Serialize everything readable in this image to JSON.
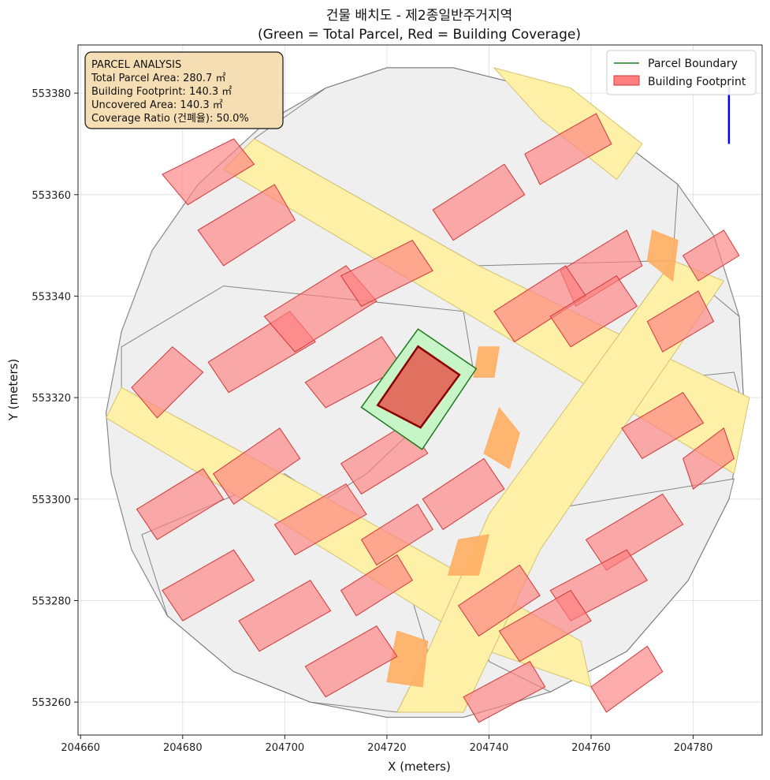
{
  "chart_data": {
    "type": "map",
    "title": "건물 배치도 - 제2종일반주거지역",
    "subtitle": "(Green = Total Parcel, Red = Building Coverage)",
    "xlabel": "X (meters)",
    "ylabel": "Y (meters)",
    "xlim": [
      204659.5,
      204793.5
    ],
    "ylim": [
      553253.5,
      553389.5
    ],
    "x_ticks": [
      204660,
      204680,
      204700,
      204720,
      204740,
      204760,
      204780
    ],
    "y_ticks": [
      553260,
      553280,
      553300,
      553320,
      553340,
      553360,
      553380
    ],
    "grid": true,
    "legend_placement": "top-right",
    "legend": [
      {
        "label": "Parcel Boundary",
        "color": "#1f7a1f",
        "kind": "line"
      },
      {
        "label": "Building Footprint",
        "color": "#ff7f7f",
        "kind": "patch"
      }
    ],
    "info_box": {
      "lines": [
        "PARCEL ANALYSIS",
        "Total Parcel Area: 280.7 ㎡",
        "Building Footprint: 140.3 ㎡",
        "Uncovered Area: 140.3 ㎡",
        "Coverage Ratio (건폐율): 50.0%"
      ]
    },
    "subject_parcel": {
      "total_area_m2": 280.7,
      "footprint_m2": 140.3,
      "uncovered_m2": 140.3,
      "coverage_ratio_pct": 50.0,
      "parcel_polygon": [
        [
          204726.1,
          553333.5
        ],
        [
          204737.5,
          553325.7
        ],
        [
          204726.9,
          553309.8
        ],
        [
          204715.0,
          553318.1
        ]
      ],
      "building_polygon": [
        [
          204726.1,
          553330.1
        ],
        [
          204734.2,
          553324.5
        ],
        [
          204726.6,
          553314.1
        ],
        [
          204718.2,
          553318.5
        ]
      ]
    },
    "north_arrow": {
      "x": 204787,
      "y_start": 553370,
      "y_end": 553382
    },
    "colors": {
      "parcel_fill": "#c8f5c8",
      "parcel_edge": "#1f7a1f",
      "building_fill": "#ff7f7f",
      "building_edge": "#d03838",
      "subject_fill": "#e07060",
      "subject_edge": "#8b0000",
      "road": "#fff0a8",
      "road_edge": "#d4c270",
      "block_fill": "#efefef",
      "block_edge": "#555555",
      "orange": "#ffae62",
      "info_bg": "#f5deb3",
      "north_arrow": "#0000ff"
    },
    "study_area": [
      [
        204665,
        553317
      ],
      [
        204668,
        553333
      ],
      [
        204674,
        553349
      ],
      [
        204683,
        553362
      ],
      [
        204696,
        553374
      ],
      [
        204708,
        553381
      ],
      [
        204720,
        553385
      ],
      [
        204733,
        553385
      ],
      [
        204749,
        553381
      ],
      [
        204764,
        553372
      ],
      [
        204777,
        553362
      ],
      [
        204784,
        553352
      ],
      [
        204789,
        553336
      ],
      [
        204790,
        553317
      ],
      [
        204787,
        553300
      ],
      [
        204779,
        553284
      ],
      [
        204767,
        553270
      ],
      [
        204752,
        553262
      ],
      [
        204735,
        553257
      ],
      [
        204720,
        553257
      ],
      [
        204705,
        553260
      ],
      [
        204690,
        553266
      ],
      [
        204677,
        553277
      ],
      [
        204670,
        553290
      ],
      [
        204666,
        553305
      ]
    ],
    "roads": [
      [
        [
          204688,
          553365
        ],
        [
          204735,
          553337
        ],
        [
          204788,
          553305
        ],
        [
          204791,
          553320
        ],
        [
          204738,
          553346
        ],
        [
          204694,
          553371
        ]
      ],
      [
        [
          204665,
          553316
        ],
        [
          204700,
          553295
        ],
        [
          204740,
          553270
        ],
        [
          204760,
          553263
        ],
        [
          204758,
          553272
        ],
        [
          204705,
          553302
        ],
        [
          204668,
          553322
        ]
      ],
      [
        [
          204722,
          553258
        ],
        [
          204735,
          553258
        ],
        [
          204750,
          553290
        ],
        [
          204786,
          553343
        ],
        [
          204776,
          553347
        ],
        [
          204740,
          553297
        ],
        [
          204728,
          553270
        ]
      ],
      [
        [
          204741,
          553385
        ],
        [
          204756,
          553381
        ],
        [
          204770,
          553370
        ],
        [
          204765,
          553363
        ],
        [
          204750,
          553375
        ]
      ]
    ],
    "blocks": [
      [
        [
          204668,
          553330
        ],
        [
          204688,
          553342
        ],
        [
          204735,
          553337
        ],
        [
          204737,
          553325
        ],
        [
          204716,
          553305
        ],
        [
          204700,
          553295
        ],
        [
          204668,
          553318
        ]
      ],
      [
        [
          204672,
          553293
        ],
        [
          204700,
          553305
        ],
        [
          204722,
          553290
        ],
        [
          204728,
          553270
        ],
        [
          204722,
          553258
        ],
        [
          204705,
          553260
        ],
        [
          204690,
          553266
        ],
        [
          204677,
          553277
        ]
      ],
      [
        [
          204740,
          553296
        ],
        [
          204788,
          553304
        ],
        [
          204787,
          553300
        ],
        [
          204779,
          553284
        ],
        [
          204767,
          553270
        ],
        [
          204752,
          553262
        ],
        [
          204740,
          553268
        ],
        [
          204738,
          553282
        ]
      ],
      [
        [
          204788,
          553325
        ],
        [
          204790,
          553317
        ],
        [
          204789,
          553336
        ],
        [
          204776,
          553347
        ],
        [
          204758,
          553322
        ]
      ],
      [
        [
          204694,
          553371
        ],
        [
          204738,
          553346
        ],
        [
          204776,
          553347
        ],
        [
          204777,
          553362
        ],
        [
          204764,
          553372
        ],
        [
          204749,
          553381
        ],
        [
          204733,
          553385
        ],
        [
          204720,
          553385
        ],
        [
          204708,
          553381
        ]
      ]
    ],
    "orange_polygons": [
      [
        [
          204720,
          553264
        ],
        [
          204727,
          553263
        ],
        [
          204728,
          553272
        ],
        [
          204722,
          553274
        ]
      ],
      [
        [
          204772,
          553353
        ],
        [
          204777,
          553351
        ],
        [
          204776,
          553343
        ],
        [
          204771,
          553347
        ]
      ],
      [
        [
          204742,
          553318
        ],
        [
          204746,
          553313
        ],
        [
          204744,
          553306
        ],
        [
          204739,
          553309
        ]
      ],
      [
        [
          204738,
          553330
        ],
        [
          204742,
          553330
        ],
        [
          204741,
          553324
        ],
        [
          204737,
          553324
        ]
      ],
      [
        [
          204734,
          553292
        ],
        [
          204740,
          553293
        ],
        [
          204738,
          553285
        ],
        [
          204732,
          553285
        ]
      ]
    ],
    "buildings": [
      [
        [
          204676,
          553364
        ],
        [
          204690,
          553371
        ],
        [
          204694,
          553366
        ],
        [
          204681,
          553358
        ]
      ],
      [
        [
          204683,
          553353
        ],
        [
          204698,
          553362
        ],
        [
          204702,
          553355
        ],
        [
          204688,
          553346
        ]
      ],
      [
        [
          204685,
          553327
        ],
        [
          204701,
          553337
        ],
        [
          204706,
          553331
        ],
        [
          204689,
          553321
        ]
      ],
      [
        [
          204670,
          553322
        ],
        [
          204678,
          553330
        ],
        [
          204684,
          553325
        ],
        [
          204675,
          553316
        ]
      ],
      [
        [
          204696,
          553336
        ],
        [
          204712,
          553346
        ],
        [
          204718,
          553339
        ],
        [
          204702,
          553329
        ]
      ],
      [
        [
          204704,
          553323
        ],
        [
          204719,
          553332
        ],
        [
          204723,
          553326
        ],
        [
          204708,
          553318
        ]
      ],
      [
        [
          204711,
          553344
        ],
        [
          204725,
          553351
        ],
        [
          204729,
          553345
        ],
        [
          204715,
          553338
        ]
      ],
      [
        [
          204729,
          553357
        ],
        [
          204743,
          553366
        ],
        [
          204747,
          553360
        ],
        [
          204733,
          553351
        ]
      ],
      [
        [
          204747,
          553368
        ],
        [
          204761,
          553376
        ],
        [
          204764,
          553370
        ],
        [
          204750,
          553362
        ]
      ],
      [
        [
          204754,
          553345
        ],
        [
          204767,
          553353
        ],
        [
          204770,
          553346
        ],
        [
          204757,
          553338
        ]
      ],
      [
        [
          204741,
          553337
        ],
        [
          204755,
          553346
        ],
        [
          204759,
          553340
        ],
        [
          204745,
          553331
        ]
      ],
      [
        [
          204752,
          553336
        ],
        [
          204765,
          553344
        ],
        [
          204769,
          553338
        ],
        [
          204756,
          553330
        ]
      ],
      [
        [
          204771,
          553335
        ],
        [
          204781,
          553341
        ],
        [
          204784,
          553335
        ],
        [
          204774,
          553329
        ]
      ],
      [
        [
          204766,
          553314
        ],
        [
          204778,
          553321
        ],
        [
          204782,
          553315
        ],
        [
          204770,
          553308
        ]
      ],
      [
        [
          204778,
          553308
        ],
        [
          204786,
          553314
        ],
        [
          204788,
          553308
        ],
        [
          204780,
          553302
        ]
      ],
      [
        [
          204759,
          553292
        ],
        [
          204774,
          553301
        ],
        [
          204778,
          553295
        ],
        [
          204763,
          553286
        ]
      ],
      [
        [
          204752,
          553282
        ],
        [
          204767,
          553290
        ],
        [
          204771,
          553284
        ],
        [
          204756,
          553276
        ]
      ],
      [
        [
          204742,
          553274
        ],
        [
          204756,
          553282
        ],
        [
          204760,
          553276
        ],
        [
          204746,
          553268
        ]
      ],
      [
        [
          204734,
          553279
        ],
        [
          204746,
          553287
        ],
        [
          204750,
          553281
        ],
        [
          204738,
          553273
        ]
      ],
      [
        [
          204727,
          553300
        ],
        [
          204739,
          553308
        ],
        [
          204743,
          553302
        ],
        [
          204731,
          553294
        ]
      ],
      [
        [
          204711,
          553307
        ],
        [
          204724,
          553315
        ],
        [
          204728,
          553309
        ],
        [
          204715,
          553301
        ]
      ],
      [
        [
          204698,
          553295
        ],
        [
          204712,
          553303
        ],
        [
          204716,
          553297
        ],
        [
          204702,
          553289
        ]
      ],
      [
        [
          204686,
          553305
        ],
        [
          204699,
          553314
        ],
        [
          204703,
          553308
        ],
        [
          204690,
          553299
        ]
      ],
      [
        [
          204671,
          553298
        ],
        [
          204684,
          553306
        ],
        [
          204688,
          553300
        ],
        [
          204675,
          553292
        ]
      ],
      [
        [
          204676,
          553282
        ],
        [
          204690,
          553290
        ],
        [
          204694,
          553284
        ],
        [
          204680,
          553276
        ]
      ],
      [
        [
          204691,
          553276
        ],
        [
          204705,
          553284
        ],
        [
          204709,
          553278
        ],
        [
          204695,
          553270
        ]
      ],
      [
        [
          204704,
          553267
        ],
        [
          204718,
          553275
        ],
        [
          204722,
          553269
        ],
        [
          204708,
          553261
        ]
      ],
      [
        [
          204711,
          553282
        ],
        [
          204722,
          553289
        ],
        [
          204725,
          553284
        ],
        [
          204714,
          553277
        ]
      ],
      [
        [
          204715,
          553292
        ],
        [
          204726,
          553299
        ],
        [
          204729,
          553294
        ],
        [
          204718,
          553287
        ]
      ],
      [
        [
          204735,
          553261
        ],
        [
          204748,
          553268
        ],
        [
          204751,
          553263
        ],
        [
          204738,
          553256
        ]
      ],
      [
        [
          204760,
          553263
        ],
        [
          204771,
          553271
        ],
        [
          204774,
          553266
        ],
        [
          204763,
          553258
        ]
      ],
      [
        [
          204778,
          553348
        ],
        [
          204786,
          553353
        ],
        [
          204789,
          553348
        ],
        [
          204781,
          553343
        ]
      ]
    ]
  }
}
